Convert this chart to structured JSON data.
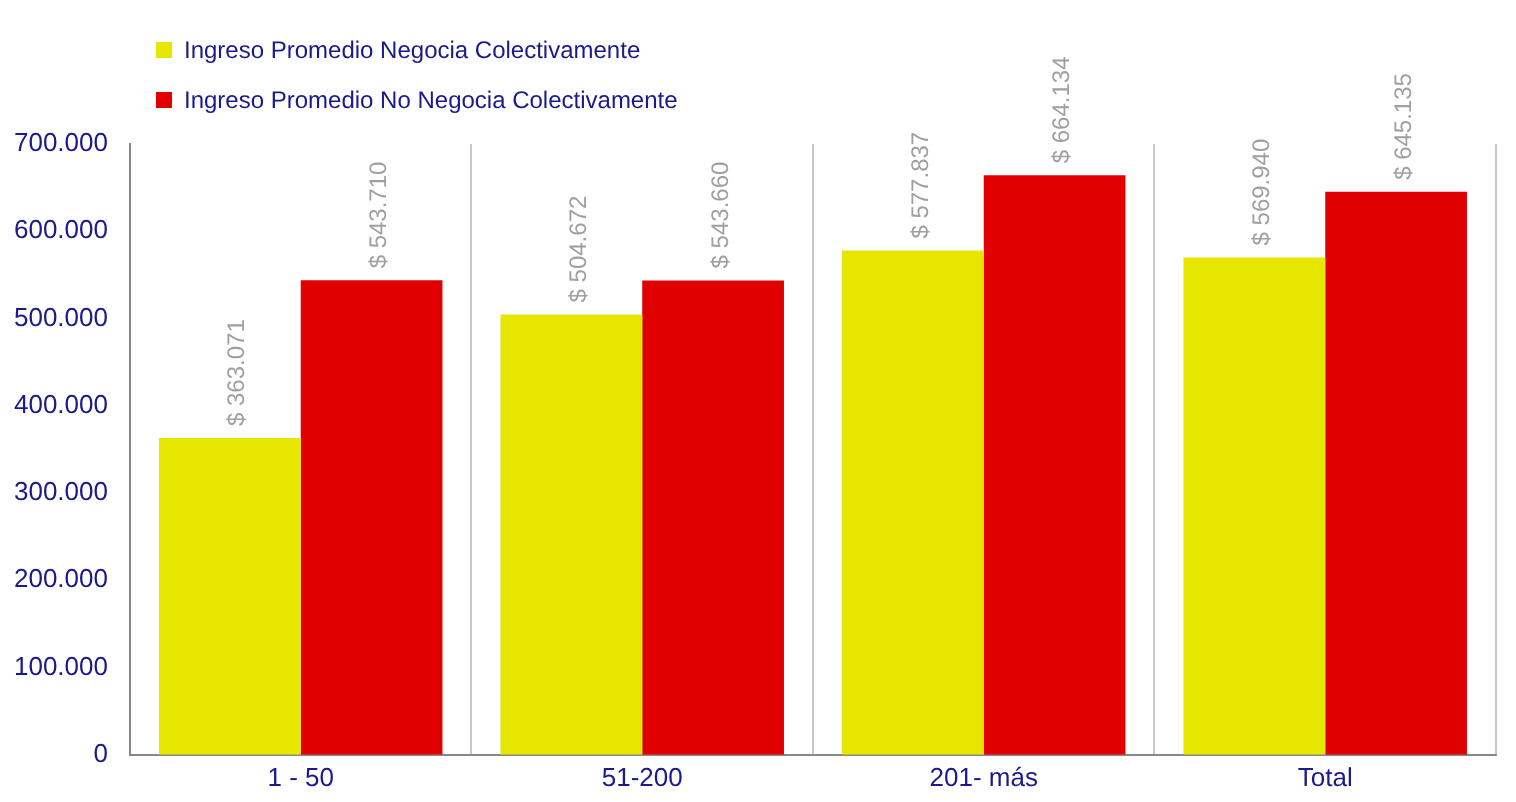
{
  "chart_data": {
    "type": "bar",
    "categories": [
      "1 - 50",
      "51-200",
      "201- más",
      "Total"
    ],
    "series": [
      {
        "name": "Ingreso Promedio Negocia Colectivamente",
        "color": "#e6e600",
        "values": [
          363071,
          504672,
          577837,
          569940
        ],
        "value_labels": [
          "$ 363.071",
          "$ 504.672",
          "$ 577.837",
          "$ 569.940"
        ]
      },
      {
        "name": "Ingreso Promedio No Negocia Colectivamente",
        "color": "#e00000",
        "values": [
          543710,
          543660,
          664134,
          645135
        ],
        "value_labels": [
          "$ 543.710",
          "$ 543.660",
          "$ 664.134",
          "$ 645.135"
        ]
      }
    ],
    "ylim": [
      0,
      700000
    ],
    "yticks": [
      {
        "value": 0,
        "label": "0"
      },
      {
        "value": 100000,
        "label": "100.000"
      },
      {
        "value": 200000,
        "label": "200.000"
      },
      {
        "value": 300000,
        "label": "300.000"
      },
      {
        "value": 400000,
        "label": "400.000"
      },
      {
        "value": 500000,
        "label": "500.000"
      },
      {
        "value": 600000,
        "label": "600.000"
      },
      {
        "value": 700000,
        "label": "700.000"
      }
    ],
    "grid": "x",
    "legend": "top left"
  }
}
